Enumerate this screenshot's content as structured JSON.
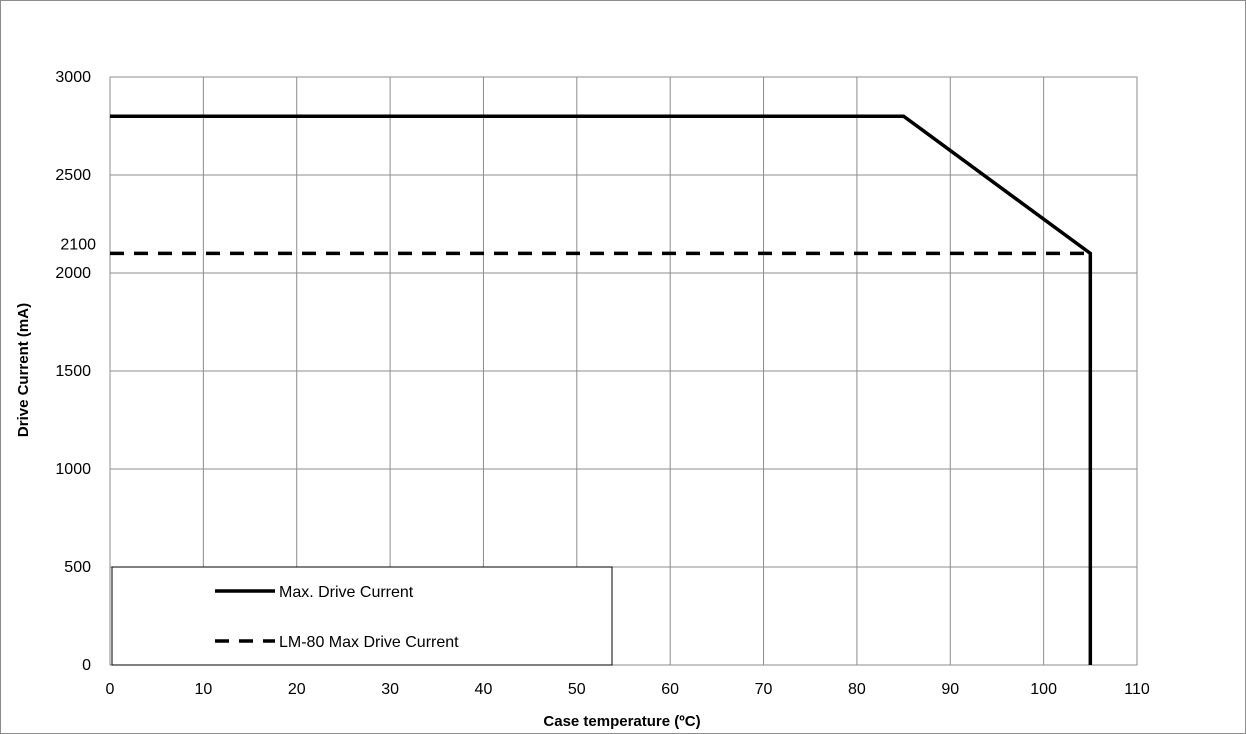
{
  "chart_data": {
    "type": "line",
    "title": "",
    "xlabel": "Case temperature (ºC)",
    "ylabel": "Drive Current (mA)",
    "xlim": [
      0,
      110
    ],
    "ylim": [
      0,
      3000
    ],
    "xticks": [
      0,
      10,
      20,
      30,
      40,
      50,
      60,
      70,
      80,
      90,
      100,
      110
    ],
    "yticks": [
      0,
      500,
      1000,
      1500,
      2000,
      2500,
      3000
    ],
    "extra_ytick_label": "2100",
    "grid": true,
    "legend_position": "bottom-left",
    "series": [
      {
        "name": "Max. Drive Current",
        "style": "solid",
        "color": "#000000",
        "x": [
          0,
          85,
          105,
          105
        ],
        "y": [
          2800,
          2800,
          2100,
          0
        ]
      },
      {
        "name": "LM-80 Max Drive Current",
        "style": "dashed",
        "color": "#000000",
        "x": [
          0,
          105
        ],
        "y": [
          2100,
          2100
        ]
      }
    ]
  }
}
